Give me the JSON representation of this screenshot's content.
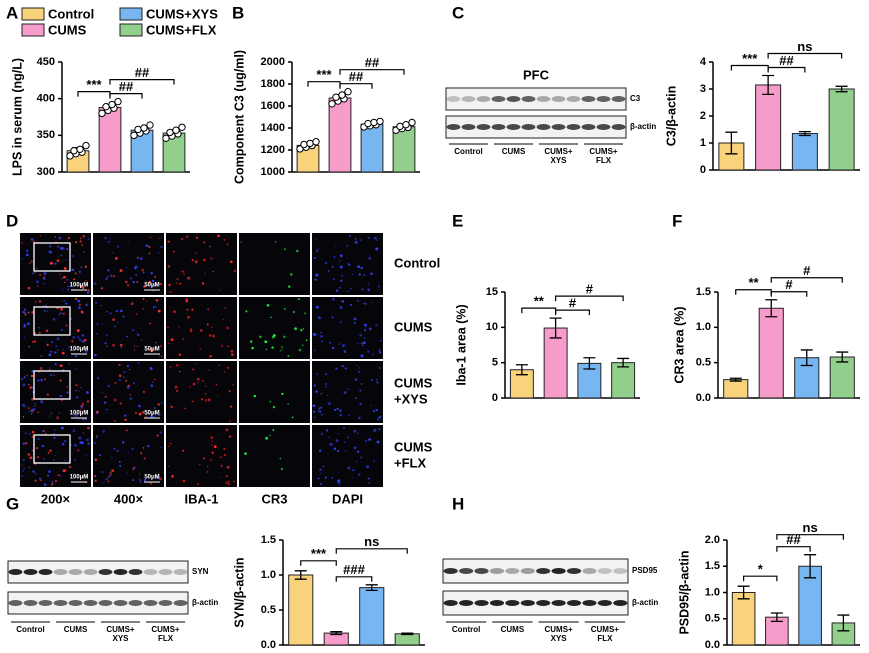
{
  "legend": [
    {
      "name": "Control",
      "color": "#f9d27c"
    },
    {
      "name": "CUMS",
      "color": "#f59ccb"
    },
    {
      "name": "CUMS+XYS",
      "color": "#77b6f1"
    },
    {
      "name": "CUMS+FLX",
      "color": "#92cf8c"
    }
  ],
  "chart_data": [
    {
      "type": "bar",
      "label": "A",
      "y_label": "LPS in serum (ng/L)",
      "values": [
        329,
        388,
        357,
        353
      ],
      "errors": [
        4,
        4,
        3,
        4
      ],
      "points": [
        [
          322,
          325,
          327,
          329,
          331,
          336
        ],
        [
          380,
          384,
          387,
          389,
          392,
          396
        ],
        [
          350,
          353,
          356,
          358,
          360,
          364
        ],
        [
          346,
          349,
          352,
          354,
          357,
          361
        ]
      ],
      "ylim": [
        300,
        450
      ],
      "yticks": [
        300,
        350,
        400,
        450
      ],
      "annotations": [
        "***",
        "##",
        "##"
      ]
    },
    {
      "type": "bar",
      "label": "B",
      "y_label": "Component C3 (ug/ml)",
      "values": [
        1242,
        1673,
        1435,
        1412
      ],
      "errors": [
        20,
        30,
        15,
        20
      ],
      "points": [
        [
          1210,
          1225,
          1240,
          1250,
          1260,
          1275
        ],
        [
          1620,
          1645,
          1665,
          1680,
          1700,
          1730
        ],
        [
          1410,
          1420,
          1430,
          1440,
          1450,
          1460
        ],
        [
          1380,
          1395,
          1405,
          1415,
          1430,
          1450
        ]
      ],
      "ylim": [
        1000,
        2000
      ],
      "yticks": [
        1000,
        1200,
        1400,
        1600,
        1800,
        2000
      ],
      "annotations": [
        "***",
        "##",
        "##"
      ]
    },
    {
      "type": "bar",
      "label": "C",
      "y_label": "C3/β-actin",
      "values": [
        1.0,
        3.15,
        1.35,
        3.0
      ],
      "errors": [
        0.4,
        0.35,
        0.07,
        0.1
      ],
      "ylim": [
        0,
        4
      ],
      "yticks": [
        0,
        1,
        2,
        3,
        4
      ],
      "annotations": [
        "***",
        "##",
        "ns"
      ]
    },
    {
      "type": "bar",
      "label": "E",
      "y_label": "Iba-1 area (%)",
      "values": [
        4.0,
        9.9,
        4.9,
        5.0
      ],
      "errors": [
        0.7,
        1.4,
        0.8,
        0.6
      ],
      "ylim": [
        0,
        15
      ],
      "yticks": [
        0,
        5,
        10,
        15
      ],
      "annotations": [
        "**",
        "#",
        "#"
      ]
    },
    {
      "type": "bar",
      "label": "F",
      "y_label": "CR3 area (%)",
      "values": [
        0.26,
        1.27,
        0.57,
        0.58
      ],
      "errors": [
        0.02,
        0.12,
        0.11,
        0.07
      ],
      "ylim": [
        0,
        1.5
      ],
      "yticks": [
        {
          "value": 0,
          "label": "0.0"
        },
        0.5,
        {
          "value": 1,
          "label": "1.0"
        },
        1.5
      ],
      "annotations": [
        "**",
        "#",
        "#"
      ]
    },
    {
      "type": "bar",
      "label": "G",
      "y_label": "SYN/β-actin",
      "values": [
        1.0,
        0.17,
        0.82,
        0.16
      ],
      "errors": [
        0.06,
        0.02,
        0.04,
        0.01
      ],
      "ylim": [
        0,
        1.5
      ],
      "yticks": [
        {
          "value": 0,
          "label": "0.0"
        },
        0.5,
        {
          "value": 1,
          "label": "1.0"
        },
        1.5
      ],
      "annotations": [
        "***",
        "###",
        "ns"
      ]
    },
    {
      "type": "bar",
      "label": "H",
      "y_label": "PSD95/β-actin",
      "values": [
        1.0,
        0.53,
        1.5,
        0.42
      ],
      "errors": [
        0.12,
        0.08,
        0.22,
        0.15
      ],
      "ylim": [
        0,
        2
      ],
      "yticks": [
        {
          "value": 0,
          "label": "0.0"
        },
        0.5,
        {
          "value": 1,
          "label": "1.0"
        },
        1.5,
        {
          "value": 2,
          "label": "2.0"
        }
      ],
      "annotations": [
        "*",
        "##",
        "ns"
      ]
    }
  ],
  "blots": [
    {
      "title": "PFC",
      "rows": [
        "C3",
        "β-actin"
      ]
    },
    {
      "rows": [
        "SYN",
        "β-actin"
      ]
    },
    {
      "rows": [
        "PSD95",
        "β-actin"
      ]
    }
  ],
  "blot_lanes": [
    [
      "Control"
    ],
    [
      "CUMS"
    ],
    [
      "CUMS+",
      "XYS"
    ],
    [
      "CUMS+",
      "FLX"
    ]
  ],
  "microscopy": {
    "label": "D",
    "columns": [
      "200×",
      "400×",
      "IBA-1",
      "CR3",
      "DAPI"
    ],
    "rows": [
      [
        "Control"
      ],
      [
        "CUMS"
      ],
      [
        "CUMS",
        "+XYS"
      ],
      [
        "CUMS",
        "+FLX"
      ]
    ],
    "scale_bars": [
      "100μM",
      "50μM"
    ]
  }
}
